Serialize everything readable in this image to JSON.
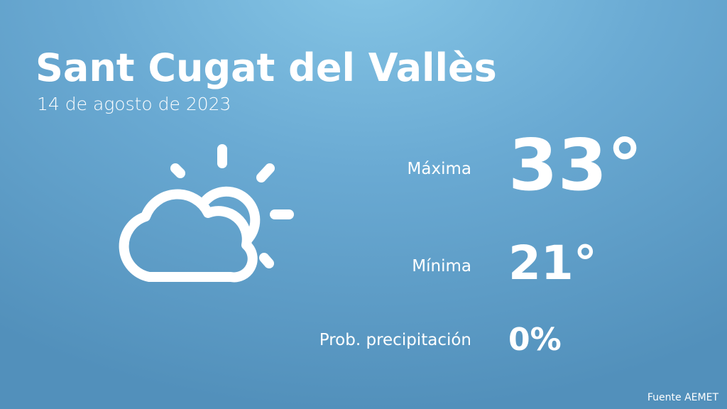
{
  "location": "Sant Cugat del Vallès",
  "date": "14 de agosto de 2023",
  "weather_icon": "partly-cloudy-icon",
  "max": {
    "label": "Máxima",
    "value": "33°"
  },
  "min": {
    "label": "Mínima",
    "value": "21°"
  },
  "precip": {
    "label": "Prob. precipitación",
    "value": "0%"
  },
  "source": "Fuente AEMET",
  "colors": {
    "background_top": "#86c6e6",
    "background_bottom": "#5290bb",
    "text": "#ffffff"
  }
}
